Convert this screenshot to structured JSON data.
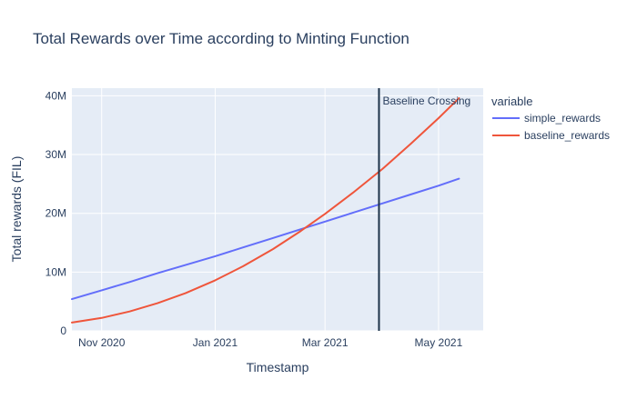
{
  "colors": {
    "background": "#ffffff",
    "plot_background": "#e5ecf6",
    "gridline": "#ffffff",
    "text": "#2a3f5f",
    "vline": "#1d3349"
  },
  "chart_data": {
    "type": "line",
    "title": "Total Rewards over Time according to Minting Function",
    "xlabel": "Timestamp",
    "ylabel": "Total rewards (FIL)",
    "legend_title": "variable",
    "legend_position": "right",
    "grid": true,
    "y_unit": "millions of FIL",
    "ylim": [
      0,
      41.3
    ],
    "x_range": [
      "2020-10-16",
      "2021-05-25"
    ],
    "x_ticks": [
      {
        "label": "Nov 2020",
        "date": "2020-11-01"
      },
      {
        "label": "Jan 2021",
        "date": "2021-01-01"
      },
      {
        "label": "Mar 2021",
        "date": "2021-03-01"
      },
      {
        "label": "May 2021",
        "date": "2021-05-01"
      }
    ],
    "y_ticks": [
      {
        "label": "0",
        "value": 0
      },
      {
        "label": "10M",
        "value": 10
      },
      {
        "label": "20M",
        "value": 20
      },
      {
        "label": "30M",
        "value": 30
      },
      {
        "label": "40M",
        "value": 40
      }
    ],
    "x": [
      "2020-10-16",
      "2020-11-01",
      "2020-11-16",
      "2020-12-01",
      "2020-12-16",
      "2021-01-01",
      "2021-01-16",
      "2021-02-01",
      "2021-02-16",
      "2021-03-01",
      "2021-03-16",
      "2021-04-01",
      "2021-04-16",
      "2021-05-01",
      "2021-05-12"
    ],
    "series": [
      {
        "name": "simple_rewards",
        "color": "#636efa",
        "values": [
          5.4,
          6.9,
          8.3,
          9.8,
          11.2,
          12.7,
          14.2,
          15.8,
          17.3,
          18.6,
          20.1,
          21.7,
          23.2,
          24.7,
          25.9
        ]
      },
      {
        "name": "baseline_rewards",
        "color": "#ef553b",
        "values": [
          1.4,
          2.2,
          3.3,
          4.7,
          6.4,
          8.6,
          11.0,
          13.9,
          17.0,
          19.9,
          23.5,
          27.6,
          31.8,
          36.2,
          39.6
        ]
      }
    ],
    "vline": {
      "date": "2021-03-30"
    },
    "annotations": [
      {
        "text": "Baseline Crossing",
        "date": "2021-03-30",
        "value_at_crossing": 28
      }
    ]
  }
}
